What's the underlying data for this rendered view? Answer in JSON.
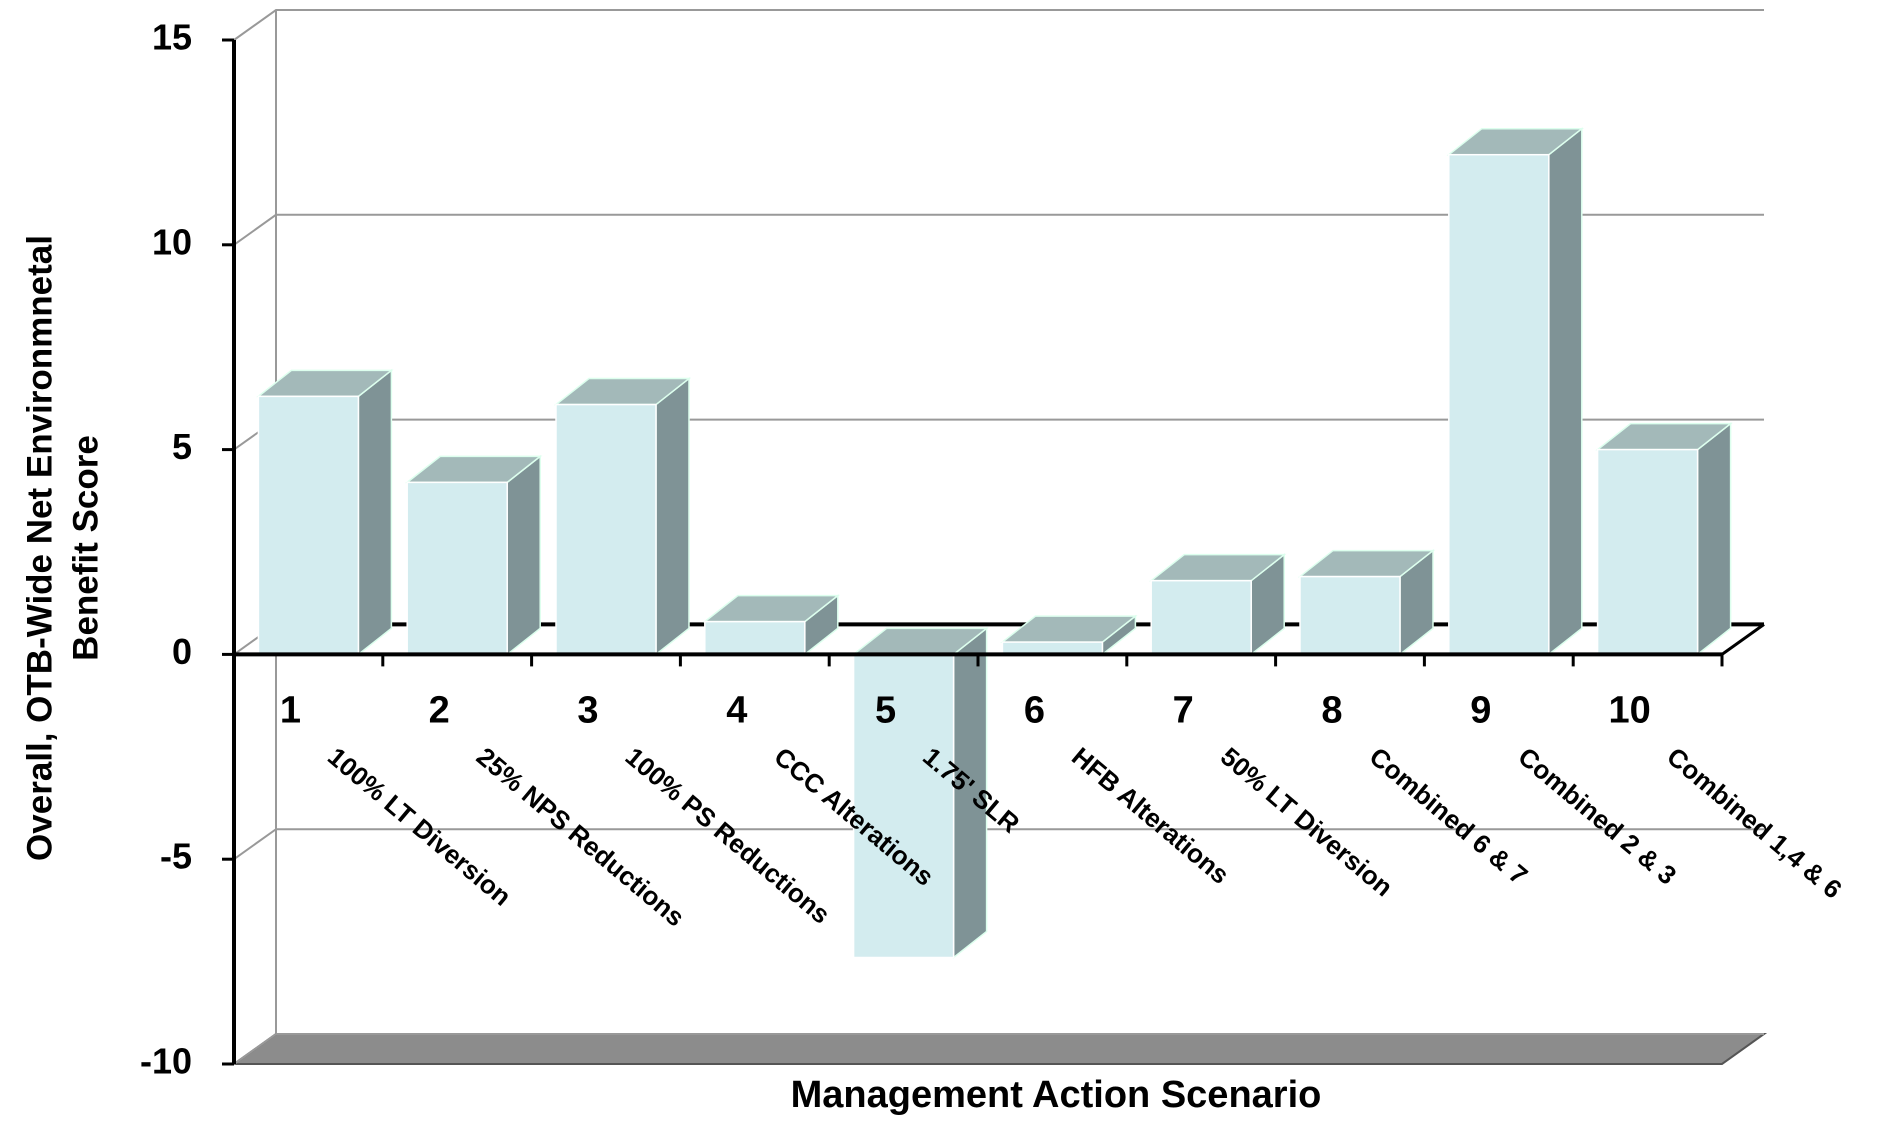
{
  "chart_data": {
    "type": "bar3d",
    "ylabel": [
      "Overall, OTB-Wide Net Environmnetal",
      "Benefit Score"
    ],
    "xlabel": "Management Action Scenario",
    "categories": [
      "1",
      "2",
      "3",
      "4",
      "5",
      "6",
      "7",
      "8",
      "9",
      "10"
    ],
    "descriptions": [
      "100% LT Diversion",
      "25% NPS Reductions",
      "100% PS Reductions",
      "CCC Alterations",
      "1.75' SLR",
      "HFB Alterations",
      "50% LT Diversion",
      "Combined 6 & 7",
      "Combined 2 & 3",
      "Combined 1,4 & 6"
    ],
    "values": [
      6.3,
      4.2,
      6.1,
      0.8,
      -7.4,
      0.3,
      1.8,
      1.9,
      12.2,
      5.0
    ],
    "color": "#d3ecef",
    "ylim": [
      -10,
      15
    ],
    "yticks": [
      -10,
      -5,
      0,
      5,
      10,
      15
    ],
    "grid": true
  }
}
